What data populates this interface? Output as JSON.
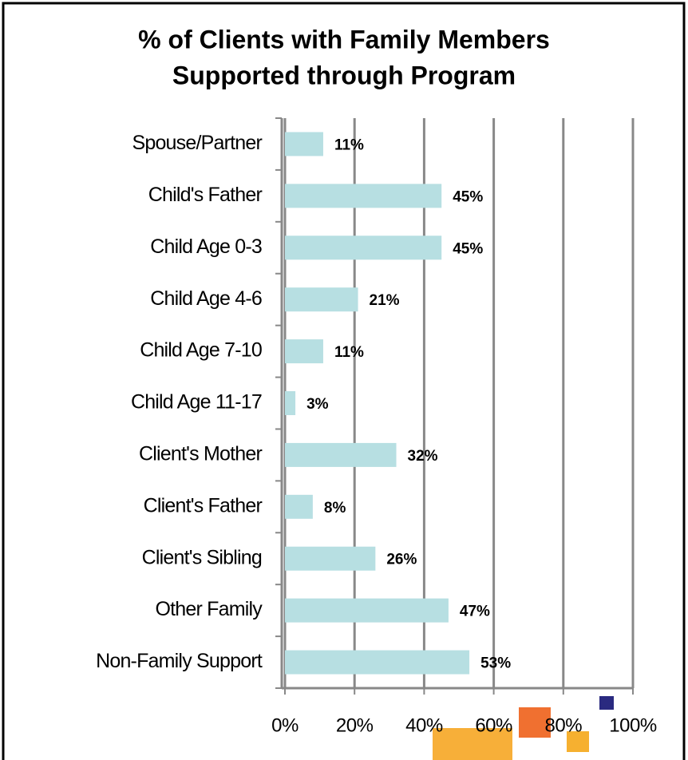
{
  "chart_data": {
    "type": "bar",
    "orientation": "horizontal",
    "title": [
      "% of Clients with Family Members",
      "Supported through Program"
    ],
    "categories": [
      "Spouse/Partner",
      "Child's Father",
      "Child Age 0-3",
      "Child Age 4-6",
      "Child Age 7-10",
      "Child Age 11-17",
      "Client's Mother",
      "Client's Father",
      "Client's Sibling",
      "Other Family",
      "Non-Family Support"
    ],
    "values": [
      11,
      45,
      45,
      21,
      11,
      3,
      32,
      8,
      26,
      47,
      53
    ],
    "value_labels": [
      "11%",
      "45%",
      "45%",
      "21%",
      "11%",
      "3%",
      "32%",
      "8%",
      "26%",
      "47%",
      "53%"
    ],
    "color": "#b7dfe2",
    "xlim": [
      0,
      100
    ],
    "xticks": [
      {
        "value": 0,
        "label": "0%"
      },
      {
        "value": 20,
        "label": "20%"
      },
      {
        "value": 40,
        "label": "40%"
      },
      {
        "value": 60,
        "label": "60%"
      },
      {
        "value": 80,
        "label": "80%"
      },
      {
        "value": 100,
        "label": "100%"
      }
    ],
    "grid": true
  }
}
